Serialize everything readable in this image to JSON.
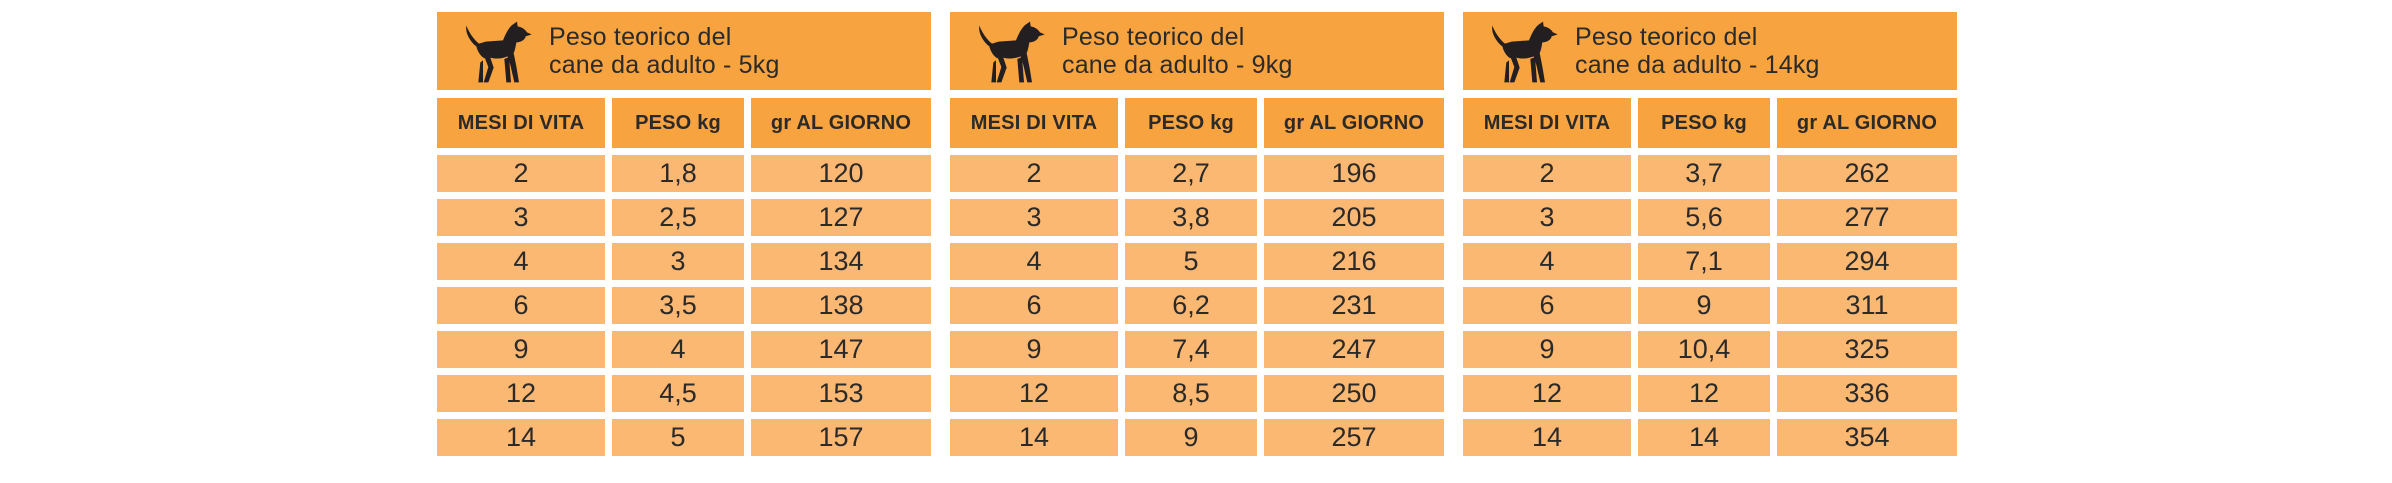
{
  "colors": {
    "band_orange": "#F6A340",
    "cell_orange": "#FAB873",
    "text_ink": "#2B2A29",
    "background": "#FFFFFF"
  },
  "chart_data": {
    "type": "table",
    "tables": [
      {
        "title": "Peso teorico del cane da adulto - 5kg",
        "columns": [
          "MESI DI VITA",
          "PESO kg",
          "gr AL GIORNO"
        ],
        "rows": [
          [
            "2",
            "1,8",
            "120"
          ],
          [
            "3",
            "2,5",
            "127"
          ],
          [
            "4",
            "3",
            "134"
          ],
          [
            "6",
            "3,5",
            "138"
          ],
          [
            "9",
            "4",
            "147"
          ],
          [
            "12",
            "4,5",
            "153"
          ],
          [
            "14",
            "5",
            "157"
          ]
        ]
      },
      {
        "title": "Peso teorico del cane da adulto - 9kg",
        "columns": [
          "MESI DI VITA",
          "PESO kg",
          "gr AL GIORNO"
        ],
        "rows": [
          [
            "2",
            "2,7",
            "196"
          ],
          [
            "3",
            "3,8",
            "205"
          ],
          [
            "4",
            "5",
            "216"
          ],
          [
            "6",
            "6,2",
            "231"
          ],
          [
            "9",
            "7,4",
            "247"
          ],
          [
            "12",
            "8,5",
            "250"
          ],
          [
            "14",
            "9",
            "257"
          ]
        ]
      },
      {
        "title": "Peso teorico del cane da adulto - 14kg",
        "columns": [
          "MESI DI VITA",
          "PESO kg",
          "gr AL GIORNO"
        ],
        "rows": [
          [
            "2",
            "3,7",
            "262"
          ],
          [
            "3",
            "5,6",
            "277"
          ],
          [
            "4",
            "7,1",
            "294"
          ],
          [
            "6",
            "9",
            "311"
          ],
          [
            "9",
            "10,4",
            "325"
          ],
          [
            "12",
            "12",
            "336"
          ],
          [
            "14",
            "14",
            "354"
          ]
        ]
      }
    ]
  },
  "tables": [
    {
      "title_line1": "Peso teorico del",
      "title_line2": "cane da adulto - 5kg",
      "columns": [
        "MESI DI VITA",
        "PESO kg",
        "gr AL GIORNO"
      ],
      "rows": [
        [
          "2",
          "1,8",
          "120"
        ],
        [
          "3",
          "2,5",
          "127"
        ],
        [
          "4",
          "3",
          "134"
        ],
        [
          "6",
          "3,5",
          "138"
        ],
        [
          "9",
          "4",
          "147"
        ],
        [
          "12",
          "4,5",
          "153"
        ],
        [
          "14",
          "5",
          "157"
        ]
      ]
    },
    {
      "title_line1": "Peso teorico del",
      "title_line2": "cane da adulto - 9kg",
      "columns": [
        "MESI DI VITA",
        "PESO kg",
        "gr AL GIORNO"
      ],
      "rows": [
        [
          "2",
          "2,7",
          "196"
        ],
        [
          "3",
          "3,8",
          "205"
        ],
        [
          "4",
          "5",
          "216"
        ],
        [
          "6",
          "6,2",
          "231"
        ],
        [
          "9",
          "7,4",
          "247"
        ],
        [
          "12",
          "8,5",
          "250"
        ],
        [
          "14",
          "9",
          "257"
        ]
      ]
    },
    {
      "title_line1": "Peso teorico del",
      "title_line2": "cane da adulto - 14kg",
      "columns": [
        "MESI DI VITA",
        "PESO kg",
        "gr AL GIORNO"
      ],
      "rows": [
        [
          "2",
          "3,7",
          "262"
        ],
        [
          "3",
          "5,6",
          "277"
        ],
        [
          "4",
          "7,1",
          "294"
        ],
        [
          "6",
          "9",
          "311"
        ],
        [
          "9",
          "10,4",
          "325"
        ],
        [
          "12",
          "12",
          "336"
        ],
        [
          "14",
          "14",
          "354"
        ]
      ]
    }
  ]
}
